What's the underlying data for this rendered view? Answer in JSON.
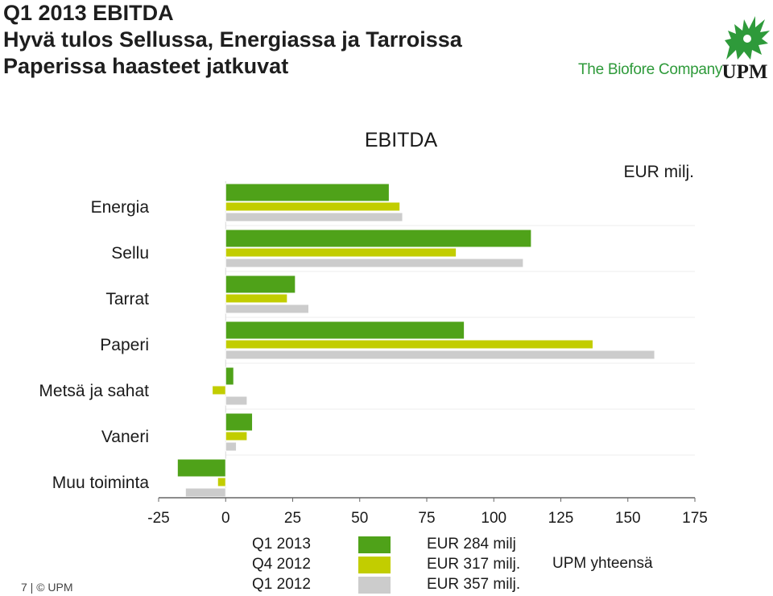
{
  "header": {
    "line1": "Q1 2013 EBITDA",
    "line2": "Hyvä tulos Sellussa, Energiassa ja Tarroissa",
    "line3": "Paperissa haasteet jatkuvat"
  },
  "brand": {
    "tagline": "The Biofore Company",
    "logo_text": "UPM",
    "logo_icon": "griffin-icon",
    "green": "#2e9a3a"
  },
  "chart_data": {
    "type": "bar",
    "orientation": "horizontal",
    "title": "EBITDA",
    "unit_label": "EUR milj.",
    "categories": [
      "Energia",
      "Sellu",
      "Tarrat",
      "Paperi",
      "Metsä ja sahat",
      "Vaneri",
      "Muu toiminta"
    ],
    "series": [
      {
        "name": "Q1 2013",
        "color": "#4fa219",
        "values": [
          61,
          114,
          26,
          89,
          3,
          10,
          -18
        ]
      },
      {
        "name": "Q4 2012",
        "color": "#c2cd00",
        "values": [
          65,
          86,
          23,
          137,
          -5,
          8,
          -3
        ]
      },
      {
        "name": "Q1 2012",
        "color": "#cccccc",
        "values": [
          66,
          111,
          31,
          160,
          8,
          4,
          -15
        ]
      }
    ],
    "xlim": [
      -25,
      175
    ],
    "xticks": [
      "-25",
      "0",
      "25",
      "50",
      "75",
      "100",
      "125",
      "150",
      "175"
    ],
    "legend_placement": "bottom",
    "grid": true
  },
  "legend": {
    "items": [
      {
        "label": "Q1 2013",
        "total": "EUR 284 milj"
      },
      {
        "label": "Q4 2012",
        "total": "EUR 317 milj."
      },
      {
        "label": "Q1 2012",
        "total": "EUR 357 milj."
      }
    ],
    "total_label": "UPM yhteensä"
  },
  "footer": {
    "text": "7 | © UPM"
  }
}
